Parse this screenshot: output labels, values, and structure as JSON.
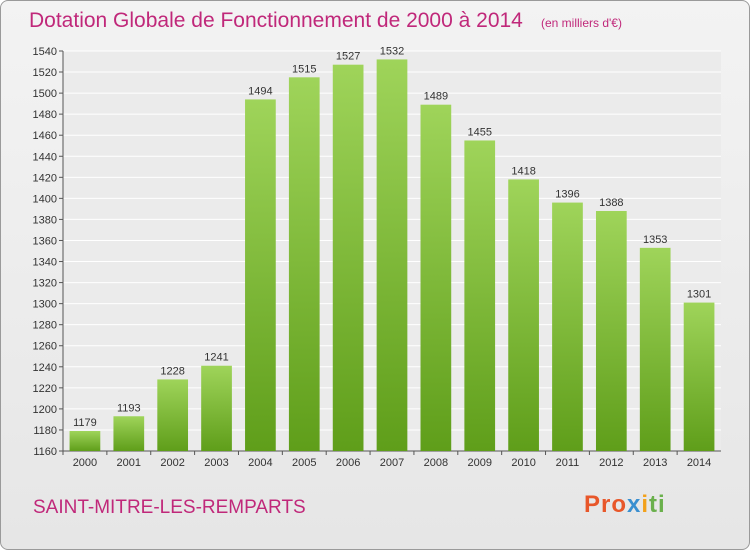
{
  "header": {
    "title": "Dotation Globale de Fonctionnement de 2000 à 2014",
    "unit": "(en milliers d'€)"
  },
  "footer": {
    "commune": "SAINT-MITRE-LES-REMPARTS",
    "logo_parts": [
      "Pro",
      "x",
      "i",
      "ti"
    ]
  },
  "colors": {
    "title": "#c0287a",
    "bar_light": "#9fd45a",
    "bar_dark": "#5f9e1a"
  },
  "chart_data": {
    "type": "bar",
    "title": "Dotation Globale de Fonctionnement de 2000 à 2014",
    "subtitle": "(en milliers d'€)",
    "xlabel": "",
    "ylabel": "",
    "categories": [
      "2000",
      "2001",
      "2002",
      "2003",
      "2004",
      "2005",
      "2006",
      "2007",
      "2008",
      "2009",
      "2010",
      "2011",
      "2012",
      "2013",
      "2014"
    ],
    "values": [
      1179,
      1193,
      1228,
      1241,
      1494,
      1515,
      1527,
      1532,
      1489,
      1455,
      1418,
      1396,
      1388,
      1353,
      1301
    ],
    "ylim": [
      1160,
      1540
    ],
    "yticks": [
      1160,
      1180,
      1200,
      1220,
      1240,
      1260,
      1280,
      1300,
      1320,
      1340,
      1360,
      1380,
      1400,
      1420,
      1440,
      1460,
      1480,
      1500,
      1520,
      1540
    ],
    "grid": true,
    "legend": "none",
    "data_labels": true
  }
}
